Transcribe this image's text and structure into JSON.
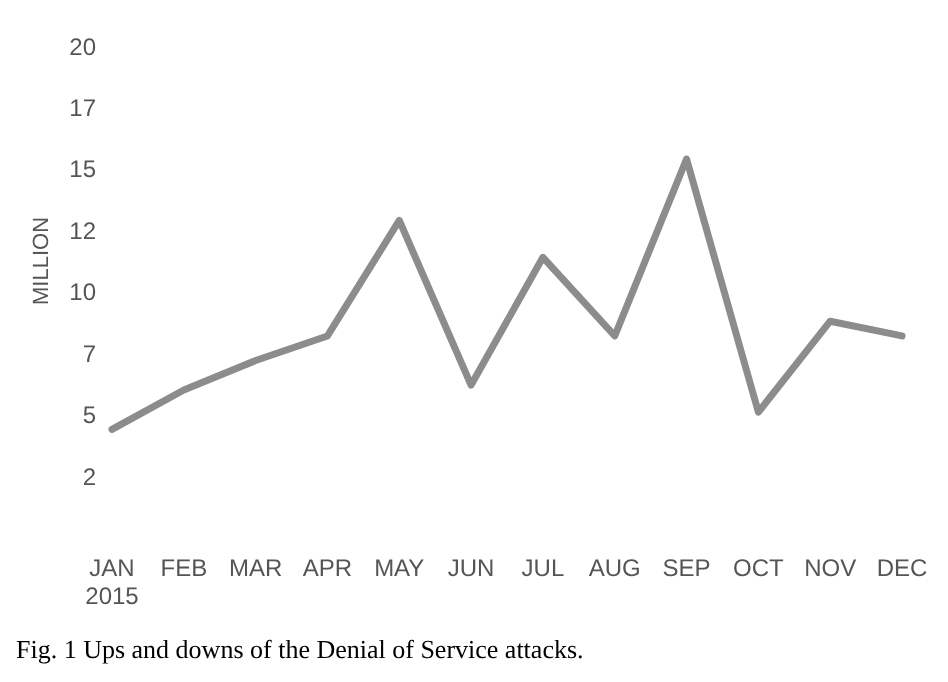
{
  "chart_data": {
    "type": "line",
    "ylabel": "MILLION",
    "categories": [
      "JAN 2015",
      "FEB",
      "MAR",
      "APR",
      "MAY",
      "JUN",
      "JUL",
      "AUG",
      "SEP",
      "OCT",
      "NOV",
      "DEC"
    ],
    "series": [
      {
        "color": "#8c8c8c",
        "values": [
          4.4,
          6.0,
          7.2,
          8.2,
          12.9,
          6.2,
          11.4,
          8.2,
          15.4,
          5.1,
          8.8,
          8.2
        ]
      }
    ],
    "ylim": [
      2.5,
      20
    ],
    "yticks": [
      {
        "value": 2.5,
        "label": "2"
      },
      {
        "value": 5,
        "label": "5"
      },
      {
        "value": 7.5,
        "label": "7"
      },
      {
        "value": 10,
        "label": "10"
      },
      {
        "value": 12.5,
        "label": "12"
      },
      {
        "value": 15,
        "label": "15"
      },
      {
        "value": 17.5,
        "label": "17"
      },
      {
        "value": 20,
        "label": "20"
      }
    ],
    "grid": false,
    "legend": false,
    "marker": "none",
    "line_style": "solid",
    "annotations": [
      "Fig. 1 Ups and downs of the Denial of Service attacks."
    ]
  }
}
